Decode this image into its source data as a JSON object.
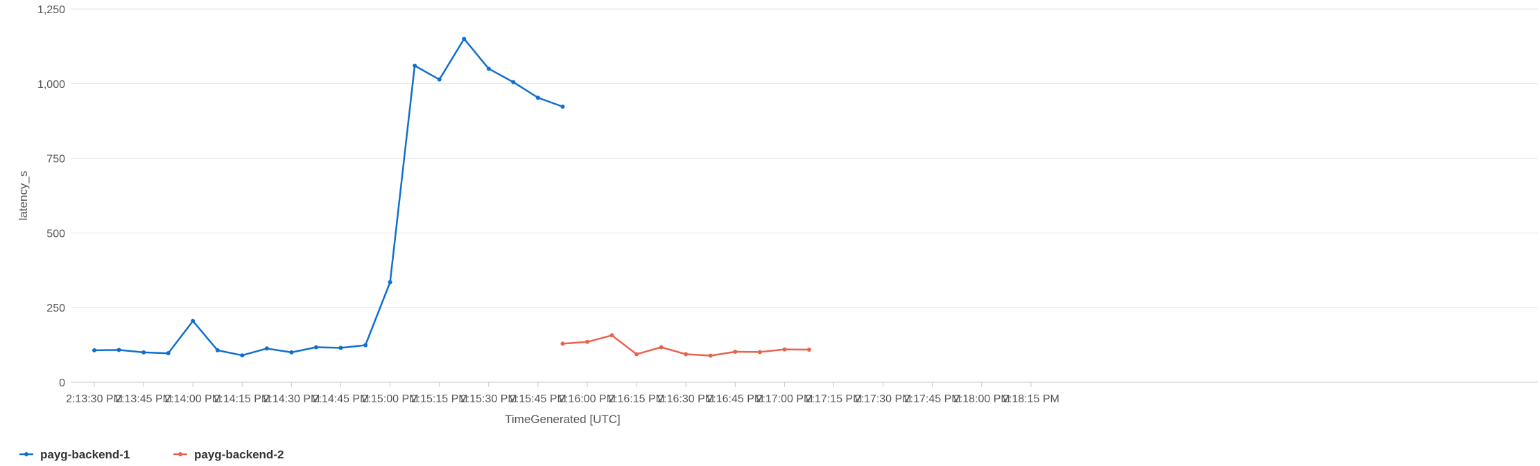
{
  "chart_data": {
    "type": "line",
    "xlabel": "TimeGenerated [UTC]",
    "ylabel": "latency_s",
    "ylim": [
      0,
      1250
    ],
    "yticks": [
      0,
      250,
      500,
      750,
      1000,
      1250
    ],
    "ytick_labels": [
      "0",
      "250",
      "500",
      "750",
      "1,000",
      "1,250"
    ],
    "x": [
      "2:13:30 PM",
      "2:13:45 PM",
      "2:14:00 PM",
      "2:14:15 PM",
      "2:14:30 PM",
      "2:14:45 PM",
      "2:15:00 PM",
      "2:15:15 PM",
      "2:15:30 PM",
      "2:15:45 PM",
      "2:16:00 PM",
      "2:16:15 PM",
      "2:16:30 PM",
      "2:16:45 PM",
      "2:17:00 PM",
      "2:17:15 PM",
      "2:17:30 PM",
      "2:17:45 PM",
      "2:18:00 PM",
      "2:18:15 PM"
    ],
    "x_seconds_from_first": [
      0,
      15,
      30,
      45,
      60,
      75,
      90,
      105,
      120,
      135,
      150,
      165,
      180,
      195,
      210,
      225,
      240,
      255,
      270,
      285
    ],
    "grid": true,
    "legend_position": "bottom-left",
    "series": [
      {
        "name": "payg-backend-1",
        "color": "#0f6fcf",
        "points": [
          {
            "t": "2:13:30 PM",
            "y": 107
          },
          {
            "t": "2:13:37.5 PM",
            "y": 108
          },
          {
            "t": "2:13:45 PM",
            "y": 100
          },
          {
            "t": "2:13:52.5 PM",
            "y": 97
          },
          {
            "t": "2:14:00 PM",
            "y": 205
          },
          {
            "t": "2:14:07.5 PM",
            "y": 107
          },
          {
            "t": "2:14:15 PM",
            "y": 90
          },
          {
            "t": "2:14:22.5 PM",
            "y": 113
          },
          {
            "t": "2:14:30 PM",
            "y": 100
          },
          {
            "t": "2:14:37.5 PM",
            "y": 117
          },
          {
            "t": "2:14:45 PM",
            "y": 115
          },
          {
            "t": "2:14:52.5 PM",
            "y": 124
          },
          {
            "t": "2:15:00 PM",
            "y": 335
          },
          {
            "t": "2:15:07.5 PM",
            "y": 1060
          },
          {
            "t": "2:15:15 PM",
            "y": 1014
          },
          {
            "t": "2:15:22.5 PM",
            "y": 1150
          },
          {
            "t": "2:15:30 PM",
            "y": 1050
          },
          {
            "t": "2:15:37.5 PM",
            "y": 1005
          },
          {
            "t": "2:15:45 PM",
            "y": 953
          },
          {
            "t": "2:15:52.5 PM",
            "y": 923
          }
        ]
      },
      {
        "name": "payg-backend-2",
        "color": "#e8634d",
        "points": [
          {
            "t": "2:15:52.5 PM",
            "y": 129
          },
          {
            "t": "2:16:00 PM",
            "y": 135
          },
          {
            "t": "2:16:07.5 PM",
            "y": 157
          },
          {
            "t": "2:16:15 PM",
            "y": 94
          },
          {
            "t": "2:16:22.5 PM",
            "y": 117
          },
          {
            "t": "2:16:30 PM",
            "y": 94
          },
          {
            "t": "2:16:37.5 PM",
            "y": 89
          },
          {
            "t": "2:16:45 PM",
            "y": 102
          },
          {
            "t": "2:16:52.5 PM",
            "y": 101
          },
          {
            "t": "2:17:00 PM",
            "y": 110
          },
          {
            "t": "2:17:07.5 PM",
            "y": 109
          }
        ]
      }
    ]
  }
}
